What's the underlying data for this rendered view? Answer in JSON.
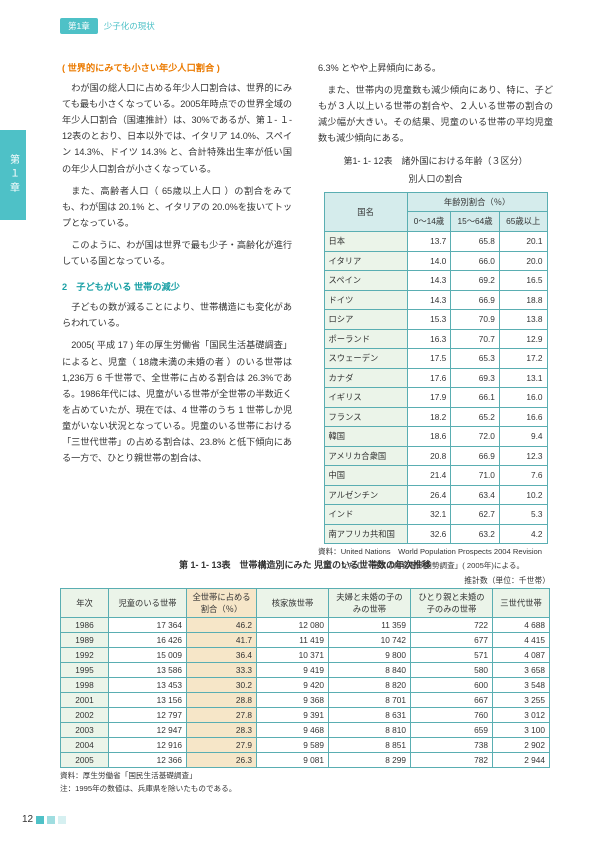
{
  "header": {
    "chip": "第1章",
    "text": "少子化の現状"
  },
  "sideTab": "第１章",
  "left": {
    "sub1": "( 世界的にみても小さい年少人口割合 )",
    "p1": "わが国の総人口に占める年少人口割合は、世界的にみても最も小さくなっている。2005年時点での世界全域の年少人口割合（国連推計）は、30%であるが、第１- １- 12表のとおり、日本以外では、イタリア 14.0%、スペイン 14.3%、ドイツ 14.3% と、合計特殊出生率が低い国の年少人口割合が小さくなっている。",
    "p2": "また、高齢者人口（ 65歳以上人口 ）の割合をみても、わが国は 20.1% と、イタリアの 20.0%を抜いてトップとなっている。",
    "p3": "このように、わが国は世界で最も少子・高齢化が進行している国となっている。",
    "sub2": "2　子どもがいる 世帯の減少",
    "p4": "子どもの数が減ることにより、世帯構造にも変化があらわれている。",
    "p5": "2005( 平成 17 ) 年の厚生労働省「国民生活基礎調査」によると、児童（ 18歳未満の未婚の者 ）のいる世帯は 1,236万 6 千世帯で、全世帯に占める割合は 26.3%である。1986年代には、児童がいる世帯が全世帯の半数近くを占めていたが、現在では、4 世帯のうち 1 世帯しか児童がいない状況となっている。児童のいる世帯における「三世代世帯」の占める割合は、23.8% と低下傾向にある一方で、ひとり親世帯の割合は、"
  },
  "right": {
    "p1": "6.3% とやや上昇傾向にある。",
    "p2": "また、世帯内の児童数も減少傾向にあり、特に、子どもが３人以上いる世帯の割合や、２人いる世帯の割合の減少幅が大きい。その結果、児童のいる世帯の平均児童数も減少傾向にある。"
  },
  "table1": {
    "caption1": "第1- 1- 12表　諸外国における年齢（３区分）",
    "caption2": "別人口の割合",
    "head": {
      "country": "国名",
      "ageGroup": "年齢別割合（％）",
      "c1": "0～14歳",
      "c2": "15～64歳",
      "c3": "65歳以上"
    },
    "rows": [
      {
        "n": "日本",
        "a": "13.7",
        "b": "65.8",
        "c": "20.1"
      },
      {
        "n": "イタリア",
        "a": "14.0",
        "b": "66.0",
        "c": "20.0"
      },
      {
        "n": "スペイン",
        "a": "14.3",
        "b": "69.2",
        "c": "16.5"
      },
      {
        "n": "ドイツ",
        "a": "14.3",
        "b": "66.9",
        "c": "18.8"
      },
      {
        "n": "ロシア",
        "a": "15.3",
        "b": "70.9",
        "c": "13.8"
      },
      {
        "n": "ポーランド",
        "a": "16.3",
        "b": "70.7",
        "c": "12.9"
      },
      {
        "n": "スウェーデン",
        "a": "17.5",
        "b": "65.3",
        "c": "17.2"
      },
      {
        "n": "カナダ",
        "a": "17.6",
        "b": "69.3",
        "c": "13.1"
      },
      {
        "n": "イギリス",
        "a": "17.9",
        "b": "66.1",
        "c": "16.0"
      },
      {
        "n": "フランス",
        "a": "18.2",
        "b": "65.2",
        "c": "16.6"
      },
      {
        "n": "韓国",
        "a": "18.6",
        "b": "72.0",
        "c": "9.4"
      },
      {
        "n": "アメリカ合衆国",
        "a": "20.8",
        "b": "66.9",
        "c": "12.3"
      },
      {
        "n": "中国",
        "a": "21.4",
        "b": "71.0",
        "c": "7.6"
      },
      {
        "n": "アルゼンチン",
        "a": "26.4",
        "b": "63.4",
        "c": "10.2"
      },
      {
        "n": "インド",
        "a": "32.1",
        "b": "62.7",
        "c": "5.3"
      },
      {
        "n": "南アフリカ共和国",
        "a": "32.6",
        "b": "63.2",
        "c": "4.2"
      }
    ],
    "src1": "資料：United Nations　World Population Prospects 2004 Revision",
    "src2": "　　　ただし、日本は総務省「国勢調査」( 2005年)による。"
  },
  "table2": {
    "caption": "第 1- 1- 13表　世帯構造別にみた 児童のいる世帯数の年次推移",
    "unit": "推計数（単位：千世帯）",
    "head": {
      "c1": "年次",
      "c2": "児童のいる世帯",
      "c3": "全世帯に占める割合（％）",
      "c4": "核家族世帯",
      "c5": "夫婦と未婚の子のみの世帯",
      "c6": "ひとり親と未婚の子のみの世帯",
      "c7": "三世代世帯"
    },
    "rows": [
      {
        "y": "1986",
        "a": "17 364",
        "b": "46.2",
        "c": "12 080",
        "d": "11 359",
        "e": "722",
        "f": "4 688"
      },
      {
        "y": "1989",
        "a": "16 426",
        "b": "41.7",
        "c": "11 419",
        "d": "10 742",
        "e": "677",
        "f": "4 415"
      },
      {
        "y": "1992",
        "a": "15 009",
        "b": "36.4",
        "c": "10 371",
        "d": "9 800",
        "e": "571",
        "f": "4 087"
      },
      {
        "y": "1995",
        "a": "13 586",
        "b": "33.3",
        "c": "9 419",
        "d": "8 840",
        "e": "580",
        "f": "3 658"
      },
      {
        "y": "1998",
        "a": "13 453",
        "b": "30.2",
        "c": "9 420",
        "d": "8 820",
        "e": "600",
        "f": "3 548"
      },
      {
        "y": "2001",
        "a": "13 156",
        "b": "28.8",
        "c": "9 368",
        "d": "8 701",
        "e": "667",
        "f": "3 255"
      },
      {
        "y": "2002",
        "a": "12 797",
        "b": "27.8",
        "c": "9 391",
        "d": "8 631",
        "e": "760",
        "f": "3 012"
      },
      {
        "y": "2003",
        "a": "12 947",
        "b": "28.3",
        "c": "9 468",
        "d": "8 810",
        "e": "659",
        "f": "3 100"
      },
      {
        "y": "2004",
        "a": "12 916",
        "b": "27.9",
        "c": "9 589",
        "d": "8 851",
        "e": "738",
        "f": "2 902"
      },
      {
        "y": "2005",
        "a": "12 366",
        "b": "26.3",
        "c": "9 081",
        "d": "8 299",
        "e": "782",
        "f": "2 944"
      }
    ],
    "note1": "資料：厚生労働省「国民生活基礎調査」",
    "note2": "注：1995年の数値は、兵庫県を除いたものである。"
  },
  "pageNumber": "12",
  "colors": {
    "sq1": "#4ec1c7",
    "sq2": "#9fdde0",
    "sq3": "#d6f0f1"
  }
}
